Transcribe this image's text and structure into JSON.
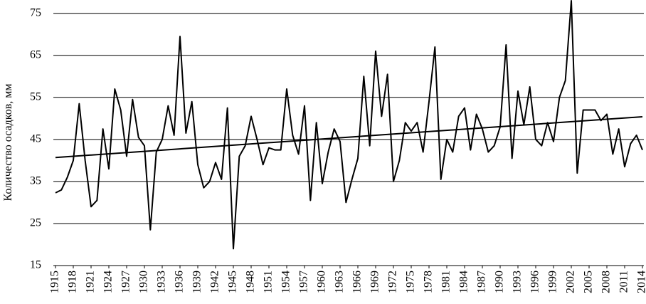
{
  "chart_data": {
    "type": "line",
    "y_label": "Количество осадков, мм",
    "x": [
      1915,
      1916,
      1917,
      1918,
      1919,
      1920,
      1921,
      1922,
      1923,
      1924,
      1925,
      1926,
      1927,
      1928,
      1929,
      1930,
      1931,
      1932,
      1933,
      1934,
      1935,
      1936,
      1937,
      1938,
      1939,
      1940,
      1941,
      1942,
      1943,
      1944,
      1945,
      1946,
      1947,
      1948,
      1949,
      1950,
      1951,
      1952,
      1953,
      1954,
      1955,
      1956,
      1957,
      1958,
      1959,
      1960,
      1961,
      1962,
      1963,
      1964,
      1965,
      1966,
      1967,
      1968,
      1969,
      1970,
      1971,
      1972,
      1973,
      1974,
      1975,
      1976,
      1977,
      1978,
      1979,
      1980,
      1981,
      1982,
      1983,
      1984,
      1985,
      1986,
      1987,
      1988,
      1989,
      1990,
      1991,
      1992,
      1993,
      1994,
      1995,
      1996,
      1997,
      1998,
      1999,
      2000,
      2001,
      2002,
      2003,
      2004,
      2005,
      2006,
      2007,
      2008,
      2009,
      2010,
      2011,
      2012,
      2013,
      2014
    ],
    "series": [
      {
        "color": "#000000",
        "values": [
          32.3,
          33,
          36,
          40,
          53.5,
          40,
          29,
          30.5,
          47.5,
          38,
          57,
          52,
          41,
          54.5,
          45.5,
          43.5,
          23.5,
          42,
          45,
          53,
          46,
          69.5,
          46.5,
          54,
          39,
          33.5,
          35,
          39.5,
          35.5,
          52.5,
          19,
          41,
          43.5,
          50.5,
          45,
          39,
          43,
          42.5,
          42.5,
          57,
          46,
          41.5,
          53,
          30.5,
          49,
          34.5,
          42,
          47.5,
          44.5,
          30,
          35.5,
          40.5,
          60,
          43.5,
          66,
          50.5,
          60.5,
          35,
          40,
          49,
          47,
          49,
          42,
          54,
          67,
          35.5,
          45,
          42,
          50.5,
          52.5,
          42.5,
          51,
          47.5,
          42,
          43.5,
          48,
          67.5,
          40.5,
          56.5,
          48.5,
          57.5,
          45,
          43.5,
          49,
          44.5,
          55,
          59,
          78,
          37,
          52,
          52,
          52,
          49.5,
          51,
          41.5,
          47.5,
          38.5,
          44,
          46,
          42.5
        ]
      }
    ],
    "trend": {
      "color": "#000000",
      "x": [
        1915,
        2014
      ],
      "values": [
        40.7,
        50.4
      ]
    },
    "xlim": [
      1915,
      2014
    ],
    "xticks": [
      1915,
      1918,
      1921,
      1924,
      1927,
      1930,
      1933,
      1936,
      1939,
      1942,
      1945,
      1948,
      1951,
      1954,
      1957,
      1960,
      1963,
      1966,
      1969,
      1972,
      1975,
      1978,
      1981,
      1984,
      1987,
      1990,
      1993,
      1996,
      1999,
      2002,
      2005,
      2008,
      2011,
      2014
    ],
    "ylim": [
      15,
      78
    ],
    "yticks": [
      15,
      25,
      35,
      45,
      55,
      65,
      75
    ],
    "grid": true
  }
}
